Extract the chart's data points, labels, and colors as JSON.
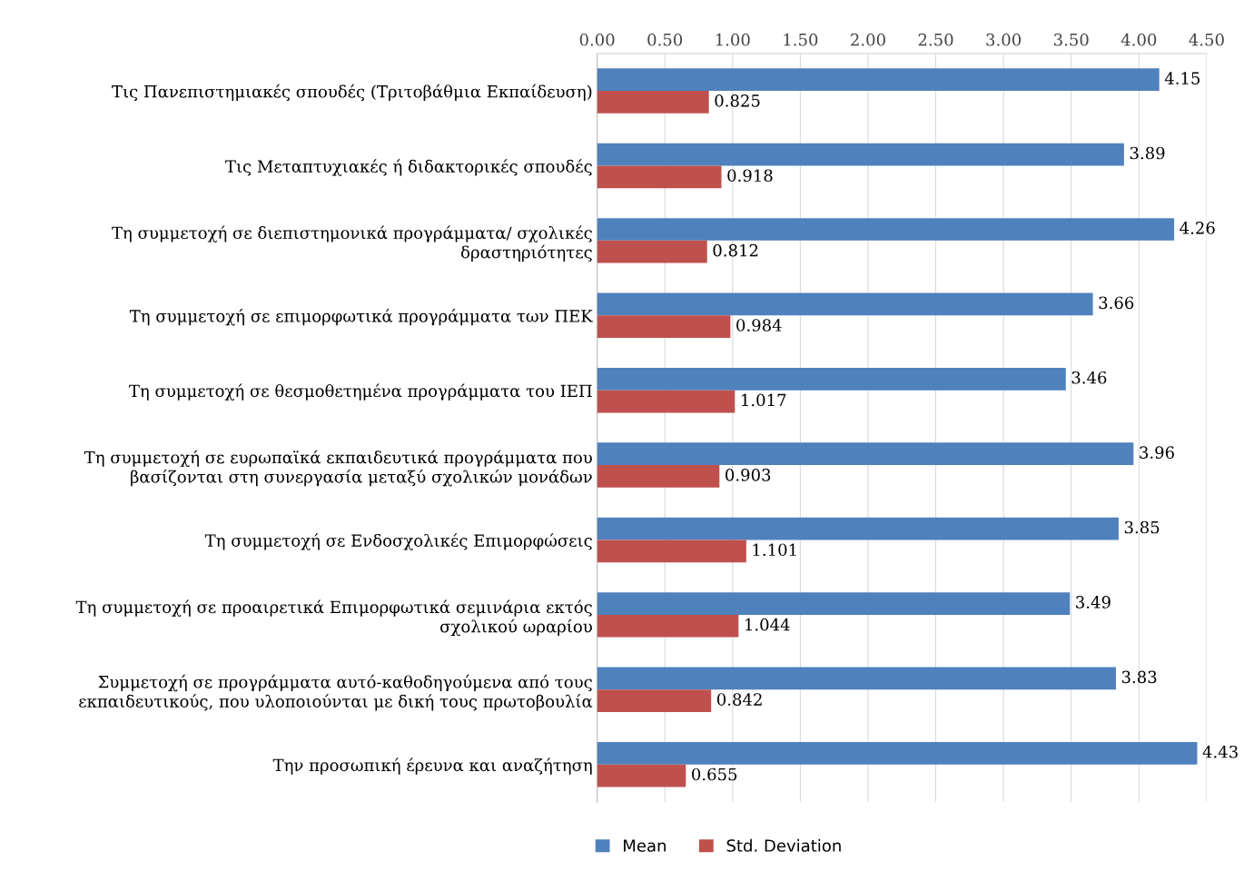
{
  "chart_data": {
    "type": "bar",
    "orientation": "horizontal",
    "categories": [
      "Τις Πανεπιστημιακές σπουδές (Τριτοβάθμια Εκπαίδευση)",
      "Τις Μεταπτυχιακές ή διδακτορικές σπουδές",
      "Τη συμμετοχή σε διεπιστημονικά προγράμματα/ σχολικές\nδραστηριότητες",
      "Τη συμμετοχή σε επιμορφωτικά προγράμματα των ΠΕΚ",
      "Τη συμμετοχή σε θεσμοθετημένα προγράμματα του ΙΕΠ",
      "Τη συμμετοχή σε ευρωπαϊκά εκπαιδευτικά προγράμματα που\nβασίζονται στη συνεργασία μεταξύ σχολικών μονάδων",
      "Τη συμμετοχή σε Ενδοσχολικές Επιμορφώσεις",
      "Τη συμμετοχή σε προαιρετικά Επιμορφωτικά σεμινάρια εκτός\nσχολικού ωραρίου",
      "Συμμετοχή σε προγράμματα αυτό-καθοδηγούμενα από τους\nεκπαιδευτικούς, που υλοποιούνται με δική τους πρωτοβουλία",
      "Την προσωπική έρευνα και αναζήτηση"
    ],
    "series": [
      {
        "name": "Mean",
        "color": "#4f81bd",
        "values": [
          4.15,
          3.89,
          4.26,
          3.66,
          3.46,
          3.96,
          3.85,
          3.49,
          3.83,
          4.43
        ]
      },
      {
        "name": "Std. Deviation",
        "color": "#c0504d",
        "values": [
          0.825,
          0.918,
          0.812,
          0.984,
          1.017,
          0.903,
          1.101,
          1.044,
          0.842,
          0.655
        ]
      }
    ],
    "xlim": [
      0,
      4.5
    ],
    "xticks": [
      {
        "value": 0,
        "label": "0.00"
      },
      {
        "value": 0.5,
        "label": "0.50"
      },
      {
        "value": 1,
        "label": "1.00"
      },
      {
        "value": 1.5,
        "label": "1.50"
      },
      {
        "value": 2,
        "label": "2.00"
      },
      {
        "value": 2.5,
        "label": "2.50"
      },
      {
        "value": 3,
        "label": "3.00"
      },
      {
        "value": 3.5,
        "label": "3.50"
      },
      {
        "value": 4,
        "label": "4.00"
      },
      {
        "value": 4.5,
        "label": "4.50"
      }
    ],
    "grid": "x",
    "legend": "bottom",
    "data_labels": true
  }
}
